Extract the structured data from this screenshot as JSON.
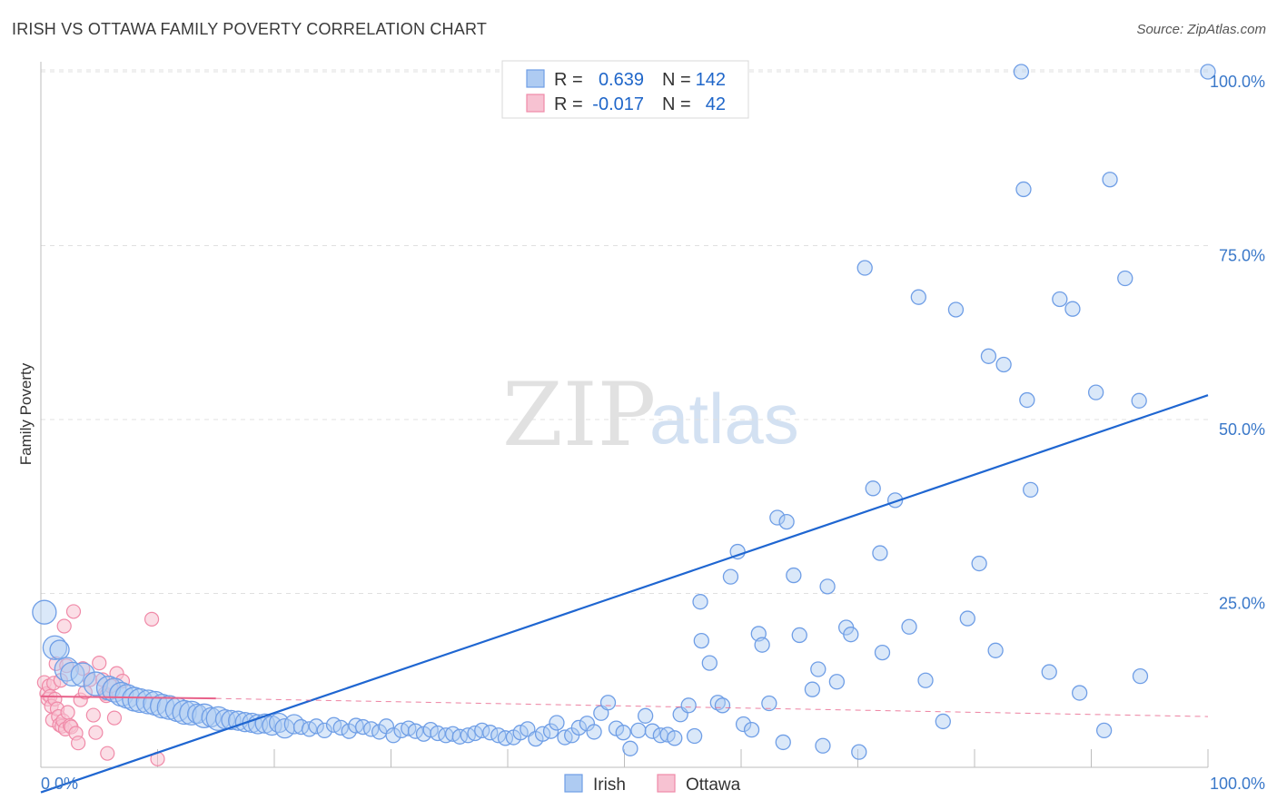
{
  "header": {
    "title": "IRISH VS OTTAWA FAMILY POVERTY CORRELATION CHART",
    "source": "Source: ZipAtlas.com"
  },
  "watermark": {
    "zip": "ZIP",
    "atlas": "atlas"
  },
  "colors": {
    "irish": "#6f9ee6",
    "irish_fill": "#aecbf2",
    "irish_line": "#1f66d1",
    "ottawa": "#f08aa8",
    "ottawa_fill": "#f7c2d2",
    "ottawa_line": "#e8628a",
    "tick": "#3a78c9",
    "grid": "#e0e0e0"
  },
  "legend": {
    "rows": [
      {
        "r_label": "R =",
        "r_value": "0.639",
        "n_label": "N =",
        "n_value": "142"
      },
      {
        "r_label": "R =",
        "r_value": "-0.017",
        "n_label": "N =",
        "n_value": "42"
      }
    ]
  },
  "bottom_legend": {
    "irish": "Irish",
    "ottawa": "Ottawa"
  },
  "chart_data": {
    "type": "scatter",
    "title": "IRISH VS OTTAWA FAMILY POVERTY CORRELATION CHART",
    "xlabel": "",
    "ylabel": "Family Poverty",
    "xlim": [
      0,
      100
    ],
    "ylim": [
      0,
      102
    ],
    "x_tick_labels": [
      "0.0%",
      "100.0%"
    ],
    "y_ticks": [
      25,
      50,
      75,
      100
    ],
    "y_tick_labels": [
      "25.0%",
      "50.0%",
      "75.0%",
      "100.0%"
    ],
    "grid": true,
    "series": [
      {
        "name": "Irish",
        "r": 0.639,
        "n": 142,
        "trend": {
          "x0": 0,
          "y0": -3.6,
          "x1": 100,
          "y1": 53.5
        },
        "points": [
          [
            0.3,
            22.3,
            2
          ],
          [
            1.2,
            17.2,
            2
          ],
          [
            1.6,
            16.9,
            1.5
          ],
          [
            2.2,
            14.1,
            2
          ],
          [
            2.7,
            13.4,
            2
          ],
          [
            3.6,
            13.3,
            2
          ],
          [
            4.7,
            12.0,
            2
          ],
          [
            5.8,
            11.4,
            2
          ],
          [
            6.3,
            11.1,
            2
          ],
          [
            6.9,
            10.5,
            2
          ],
          [
            7.4,
            10.2,
            2
          ],
          [
            8.0,
            9.8,
            2
          ],
          [
            8.5,
            9.6,
            2
          ],
          [
            9.2,
            9.4,
            2
          ],
          [
            9.8,
            9.2,
            2
          ],
          [
            10.4,
            8.8,
            2
          ],
          [
            11.0,
            8.6,
            2
          ],
          [
            11.7,
            8.3,
            2
          ],
          [
            12.3,
            7.9,
            2
          ],
          [
            12.9,
            7.8,
            2
          ],
          [
            13.4,
            7.7,
            1.5
          ],
          [
            14.0,
            7.4,
            2
          ],
          [
            14.6,
            7.2,
            1.5
          ],
          [
            15.2,
            7.0,
            2
          ],
          [
            15.8,
            6.9,
            1.5
          ],
          [
            16.3,
            6.8,
            1.5
          ],
          [
            16.9,
            6.7,
            1.5
          ],
          [
            17.5,
            6.5,
            1.5
          ],
          [
            18.1,
            6.4,
            1.5
          ],
          [
            18.6,
            6.2,
            1.5
          ],
          [
            19.2,
            6.3,
            1.5
          ],
          [
            19.8,
            6.0,
            1.5
          ],
          [
            20.4,
            6.4,
            1.5
          ],
          [
            20.9,
            5.6,
            1.5
          ],
          [
            21.7,
            6.2,
            1.5
          ],
          [
            22.3,
            5.8,
            1
          ],
          [
            23.0,
            5.5,
            1
          ],
          [
            23.6,
            5.9,
            1
          ],
          [
            24.3,
            5.3,
            1
          ],
          [
            25.1,
            6.1,
            1
          ],
          [
            25.7,
            5.7,
            1
          ],
          [
            26.4,
            5.2,
            1
          ],
          [
            27.0,
            6.0,
            1
          ],
          [
            27.6,
            5.8,
            1
          ],
          [
            28.3,
            5.5,
            1
          ],
          [
            29.0,
            5.1,
            1
          ],
          [
            29.6,
            5.9,
            1
          ],
          [
            30.2,
            4.6,
            1
          ],
          [
            30.9,
            5.3,
            1
          ],
          [
            31.5,
            5.6,
            1
          ],
          [
            32.1,
            5.2,
            1
          ],
          [
            32.8,
            4.8,
            1
          ],
          [
            33.4,
            5.4,
            1
          ],
          [
            34.0,
            4.9,
            1
          ],
          [
            34.7,
            4.6,
            1
          ],
          [
            35.3,
            4.8,
            1
          ],
          [
            35.9,
            4.4,
            1
          ],
          [
            36.6,
            4.6,
            1
          ],
          [
            37.2,
            4.9,
            1
          ],
          [
            37.8,
            5.3,
            1
          ],
          [
            38.5,
            5.0,
            1
          ],
          [
            39.2,
            4.6,
            1
          ],
          [
            39.8,
            4.2,
            1
          ],
          [
            40.5,
            4.3,
            1
          ],
          [
            41.1,
            5.0,
            1
          ],
          [
            41.7,
            5.5,
            1
          ],
          [
            42.4,
            4.1,
            1
          ],
          [
            43.0,
            4.8,
            1
          ],
          [
            43.7,
            5.2,
            1
          ],
          [
            44.2,
            6.4,
            1
          ],
          [
            44.9,
            4.3,
            1
          ],
          [
            45.5,
            4.6,
            1
          ],
          [
            46.1,
            5.7,
            1
          ],
          [
            46.8,
            6.3,
            1
          ],
          [
            47.4,
            5.1,
            1
          ],
          [
            48.0,
            7.8,
            1
          ],
          [
            48.6,
            9.3,
            1
          ],
          [
            49.3,
            5.6,
            1
          ],
          [
            49.9,
            5.0,
            1
          ],
          [
            50.5,
            2.7,
            1
          ],
          [
            51.2,
            5.3,
            1
          ],
          [
            51.8,
            7.4,
            1
          ],
          [
            52.4,
            5.2,
            1
          ],
          [
            53.1,
            4.6,
            1
          ],
          [
            53.7,
            4.7,
            1
          ],
          [
            54.3,
            4.2,
            1
          ],
          [
            54.8,
            7.6,
            1
          ],
          [
            55.5,
            8.9,
            1
          ],
          [
            56.0,
            4.5,
            1
          ],
          [
            56.6,
            18.2,
            1
          ],
          [
            56.5,
            23.8,
            1
          ],
          [
            57.3,
            15.0,
            1
          ],
          [
            58.0,
            9.3,
            1
          ],
          [
            58.4,
            8.9,
            1
          ],
          [
            59.1,
            27.4,
            1
          ],
          [
            59.7,
            31.0,
            1
          ],
          [
            60.2,
            6.2,
            1
          ],
          [
            60.9,
            5.4,
            1
          ],
          [
            61.5,
            19.2,
            1
          ],
          [
            61.8,
            17.6,
            1
          ],
          [
            62.4,
            9.2,
            1
          ],
          [
            63.1,
            35.9,
            1
          ],
          [
            63.6,
            3.6,
            1
          ],
          [
            63.9,
            35.3,
            1
          ],
          [
            64.5,
            27.6,
            1
          ],
          [
            65.0,
            19.0,
            1
          ],
          [
            66.1,
            11.2,
            1
          ],
          [
            66.6,
            14.1,
            1
          ],
          [
            67.0,
            3.1,
            1
          ],
          [
            67.4,
            26.0,
            1
          ],
          [
            68.2,
            12.3,
            1
          ],
          [
            69.0,
            20.1,
            1
          ],
          [
            69.4,
            19.1,
            1
          ],
          [
            70.1,
            2.2,
            1
          ],
          [
            70.6,
            71.8,
            1
          ],
          [
            71.3,
            40.1,
            1
          ],
          [
            71.9,
            30.8,
            1
          ],
          [
            72.1,
            16.5,
            1
          ],
          [
            73.2,
            38.4,
            1
          ],
          [
            74.4,
            20.2,
            1
          ],
          [
            75.2,
            67.6,
            1
          ],
          [
            75.8,
            12.5,
            1
          ],
          [
            77.3,
            6.6,
            1
          ],
          [
            78.4,
            65.8,
            1
          ],
          [
            79.4,
            21.4,
            1
          ],
          [
            80.4,
            29.3,
            1
          ],
          [
            81.2,
            59.1,
            1
          ],
          [
            81.8,
            16.8,
            1
          ],
          [
            82.5,
            57.9,
            1
          ],
          [
            84.5,
            52.8,
            1
          ],
          [
            84.8,
            39.9,
            1
          ],
          [
            86.4,
            13.7,
            1
          ],
          [
            87.3,
            67.3,
            1
          ],
          [
            88.4,
            65.9,
            1
          ],
          [
            89.0,
            10.7,
            1
          ],
          [
            90.4,
            53.9,
            1
          ],
          [
            91.1,
            5.3,
            1
          ],
          [
            91.6,
            84.5,
            1
          ],
          [
            92.9,
            70.3,
            1
          ],
          [
            94.1,
            52.7,
            1
          ],
          [
            94.2,
            13.1,
            1
          ],
          [
            100.0,
            100.0,
            1
          ],
          [
            84.0,
            100.0,
            1
          ],
          [
            84.2,
            83.1,
            1
          ]
        ]
      },
      {
        "name": "Ottawa",
        "r": -0.017,
        "n": 42,
        "trend": {
          "x0": 0,
          "y0": 10.2,
          "x1": 15,
          "y1": 9.9,
          "dash_to_x": 100,
          "dash_to_y": 7.3
        },
        "points": [
          [
            0.3,
            12.2
          ],
          [
            0.5,
            10.6
          ],
          [
            0.6,
            9.8
          ],
          [
            0.7,
            11.7
          ],
          [
            0.8,
            10.2
          ],
          [
            0.9,
            8.8
          ],
          [
            1.0,
            6.8
          ],
          [
            1.1,
            12.1
          ],
          [
            1.2,
            9.8
          ],
          [
            1.3,
            14.9
          ],
          [
            1.4,
            8.4
          ],
          [
            1.5,
            7.3
          ],
          [
            1.6,
            6.1
          ],
          [
            1.7,
            12.5
          ],
          [
            1.8,
            5.9
          ],
          [
            1.9,
            6.7
          ],
          [
            2.0,
            20.3
          ],
          [
            2.1,
            5.5
          ],
          [
            2.2,
            14.6
          ],
          [
            2.3,
            7.9
          ],
          [
            2.5,
            6.0
          ],
          [
            2.6,
            5.8
          ],
          [
            2.8,
            22.4
          ],
          [
            3.0,
            4.9
          ],
          [
            3.2,
            3.5
          ],
          [
            3.4,
            9.7
          ],
          [
            3.6,
            14.2
          ],
          [
            3.8,
            10.8
          ],
          [
            4.2,
            12.6
          ],
          [
            4.5,
            7.5
          ],
          [
            4.7,
            5.0
          ],
          [
            5.0,
            15.0
          ],
          [
            5.3,
            12.6
          ],
          [
            5.5,
            10.6
          ],
          [
            5.6,
            10.3
          ],
          [
            5.7,
            2.0
          ],
          [
            6.0,
            11.7
          ],
          [
            6.3,
            7.1
          ],
          [
            6.5,
            13.5
          ],
          [
            7.0,
            12.4
          ],
          [
            9.5,
            21.3
          ],
          [
            10.0,
            1.2
          ]
        ]
      }
    ]
  }
}
